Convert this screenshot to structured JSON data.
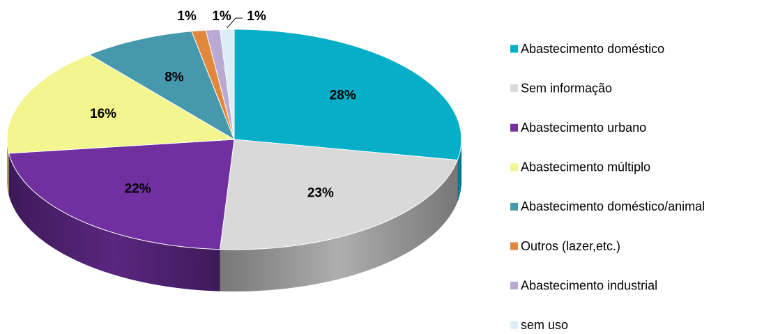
{
  "chart_data": {
    "type": "pie",
    "categories": [
      "Abastecimento doméstico",
      "Sem informação",
      "Abastecimento urbano",
      "Abastecimento múltiplo",
      "Abastecimento doméstico/animal",
      "Outros (lazer,etc.)",
      "Abastecimento industrial",
      "sem uso"
    ],
    "values": [
      28,
      23,
      22,
      16,
      8,
      1,
      1,
      1
    ],
    "value_labels": [
      "28%",
      "23%",
      "22%",
      "16%",
      "8%",
      "1%",
      "1%",
      "1%"
    ],
    "colors": [
      "#06aec8",
      "#d9d9d9",
      "#7030a0",
      "#f3f58e",
      "#4699ad",
      "#e2883c",
      "#b9a9d3",
      "#dcedf5"
    ],
    "legend": "right"
  }
}
